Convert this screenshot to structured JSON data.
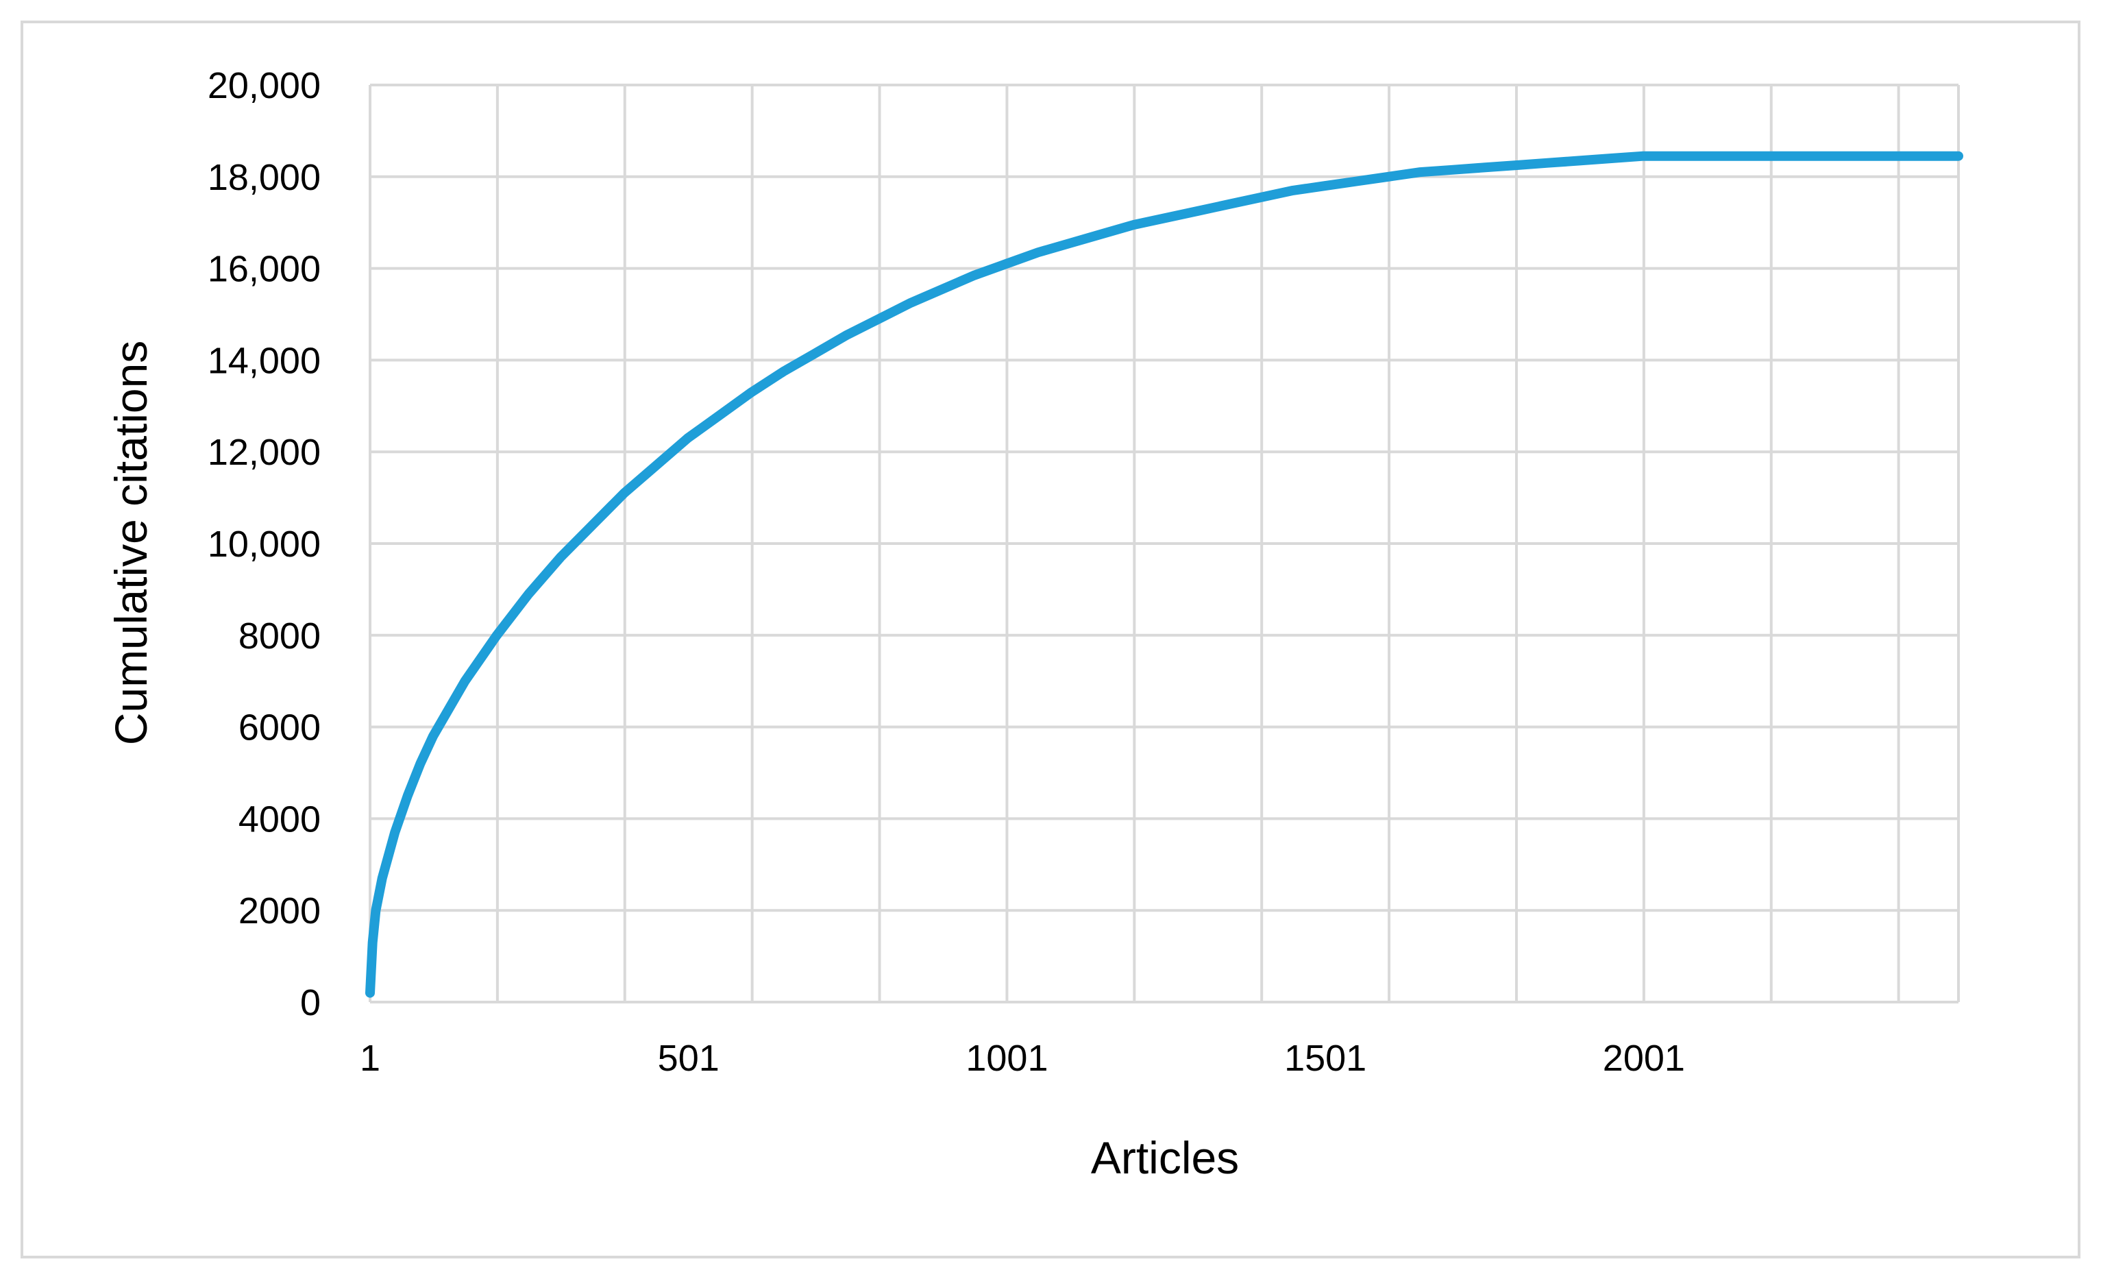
{
  "chart_data": {
    "type": "line",
    "title": "",
    "xlabel": "Articles",
    "ylabel": "Cumulative citations",
    "xlim": [
      1,
      2495
    ],
    "ylim": [
      0,
      20000
    ],
    "x_ticks": [
      1,
      501,
      1001,
      1501,
      2001
    ],
    "x_tick_labels": [
      "1",
      "501",
      "1001",
      "1501",
      "2001"
    ],
    "x_grid_step": 200,
    "y_ticks": [
      0,
      2000,
      4000,
      6000,
      8000,
      10000,
      12000,
      14000,
      16000,
      18000,
      20000
    ],
    "y_tick_labels": [
      "0",
      "2000",
      "4000",
      "6000",
      "8000",
      "10,000",
      "12,000",
      "14,000",
      "16,000",
      "18,000",
      "20,000"
    ],
    "grid": true,
    "legend": "none",
    "colors": {
      "line": "#1f9ed8",
      "grid": "#d9d9d9",
      "frame": "#d9d9d9"
    },
    "series": [
      {
        "x": [
          1,
          5,
          10,
          20,
          40,
          60,
          80,
          100,
          150,
          200,
          250,
          300,
          350,
          400,
          450,
          500,
          550,
          600,
          650,
          700,
          750,
          800,
          850,
          900,
          950,
          1000,
          1050,
          1100,
          1150,
          1200,
          1250,
          1300,
          1350,
          1400,
          1450,
          1500,
          1550,
          1600,
          1650,
          1700,
          1750,
          1800,
          1850,
          1900,
          1950,
          2000,
          2050,
          2100,
          2200,
          2300,
          2400,
          2495
        ],
        "y": [
          200,
          1300,
          2000,
          2700,
          3700,
          4500,
          5200,
          5800,
          7000,
          8000,
          8900,
          9700,
          10400,
          11100,
          11700,
          12300,
          12800,
          13300,
          13750,
          14150,
          14550,
          14900,
          15250,
          15550,
          15850,
          16100,
          16350,
          16550,
          16750,
          16950,
          17100,
          17250,
          17400,
          17550,
          17700,
          17800,
          17900,
          18000,
          18100,
          18150,
          18200,
          18250,
          18300,
          18350,
          18400,
          18450,
          18450,
          18450,
          18450,
          18450,
          18450,
          18450
        ]
      }
    ]
  }
}
